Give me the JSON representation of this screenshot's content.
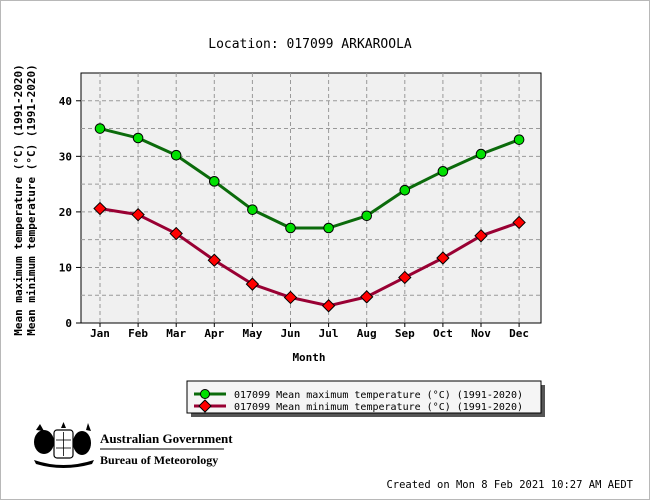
{
  "chart_data": {
    "type": "line",
    "title": "Location: 017099 ARKAROOLA",
    "xlabel": "Month",
    "ylabel_lines": [
      "Mean maximum temperature (°C) (1991-2020)",
      "Mean minimum temperature (°C) (1991-2020)"
    ],
    "categories": [
      "Jan",
      "Feb",
      "Mar",
      "Apr",
      "May",
      "Jun",
      "Jul",
      "Aug",
      "Sep",
      "Oct",
      "Nov",
      "Dec"
    ],
    "ylim": [
      0,
      45
    ],
    "yticks": [
      0,
      10,
      20,
      30,
      40
    ],
    "grid": true,
    "legend_position": "bottom",
    "series": [
      {
        "name": "017099 Mean maximum temperature (°C) (1991-2020)",
        "marker": "circle",
        "color": "#00e000",
        "line_color": "#0b6b0b",
        "values": [
          35.0,
          33.3,
          30.2,
          25.5,
          20.4,
          17.1,
          17.1,
          19.3,
          23.9,
          27.3,
          30.4,
          33.0
        ]
      },
      {
        "name": "017099 Mean minimum temperature (°C) (1991-2020)",
        "marker": "diamond",
        "color": "#ff0000",
        "line_color": "#990033",
        "values": [
          20.6,
          19.5,
          16.1,
          11.3,
          7.0,
          4.6,
          3.1,
          4.7,
          8.2,
          11.7,
          15.7,
          18.1
        ]
      }
    ]
  },
  "logo": {
    "line1": "Australian Government",
    "line2": "Bureau of Meteorology"
  },
  "footer": {
    "created": "Created on Mon  8 Feb 2021 10:27 AM AEDT"
  }
}
